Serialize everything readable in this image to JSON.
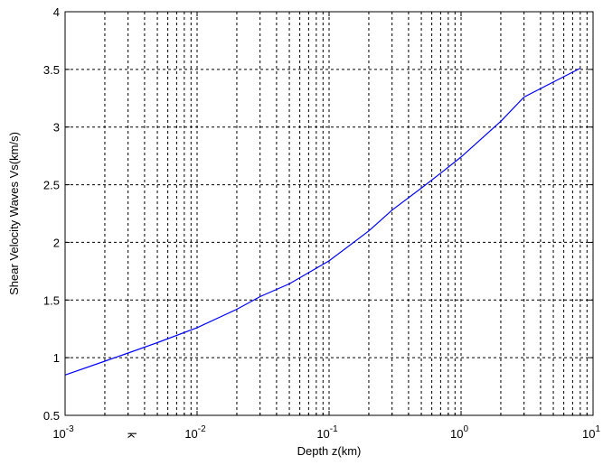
{
  "chart_data": {
    "type": "line",
    "xlabel": "Depth z(km)",
    "ylabel": "Shear Velocity Waves Vs(km/s)",
    "x_scale": "log",
    "xlim": [
      0.001,
      10
    ],
    "ylim": [
      0.5,
      4
    ],
    "grid": true,
    "x_ticks": [
      {
        "value": 0.001,
        "base": "10",
        "exp": "-3"
      },
      {
        "value": 0.01,
        "base": "10",
        "exp": "-2"
      },
      {
        "value": 0.1,
        "base": "10",
        "exp": "-1"
      },
      {
        "value": 1,
        "base": "10",
        "exp": "0"
      },
      {
        "value": 10,
        "base": "10",
        "exp": "1"
      }
    ],
    "y_ticks": [
      {
        "value": 0.5,
        "label": "0.5"
      },
      {
        "value": 1,
        "label": "1"
      },
      {
        "value": 1.5,
        "label": "1.5"
      },
      {
        "value": 2,
        "label": "2"
      },
      {
        "value": 2.5,
        "label": "2.5"
      },
      {
        "value": 3,
        "label": "3"
      },
      {
        "value": 3.5,
        "label": "3.5"
      },
      {
        "value": 4,
        "label": "4"
      }
    ],
    "annotation": {
      "text": "k",
      "x": 0.003
    },
    "series": [
      {
        "color": "#0000ff",
        "x": [
          0.001,
          0.002,
          0.003,
          0.005,
          0.01,
          0.02,
          0.03,
          0.05,
          0.1,
          0.2,
          0.3,
          0.5,
          0.7,
          1.0,
          2.0,
          3.0,
          5.0,
          8.0
        ],
        "y": [
          0.85,
          0.97,
          1.04,
          1.13,
          1.26,
          1.42,
          1.53,
          1.64,
          1.84,
          2.1,
          2.28,
          2.47,
          2.6,
          2.74,
          3.05,
          3.26,
          3.39,
          3.51
        ]
      }
    ]
  }
}
